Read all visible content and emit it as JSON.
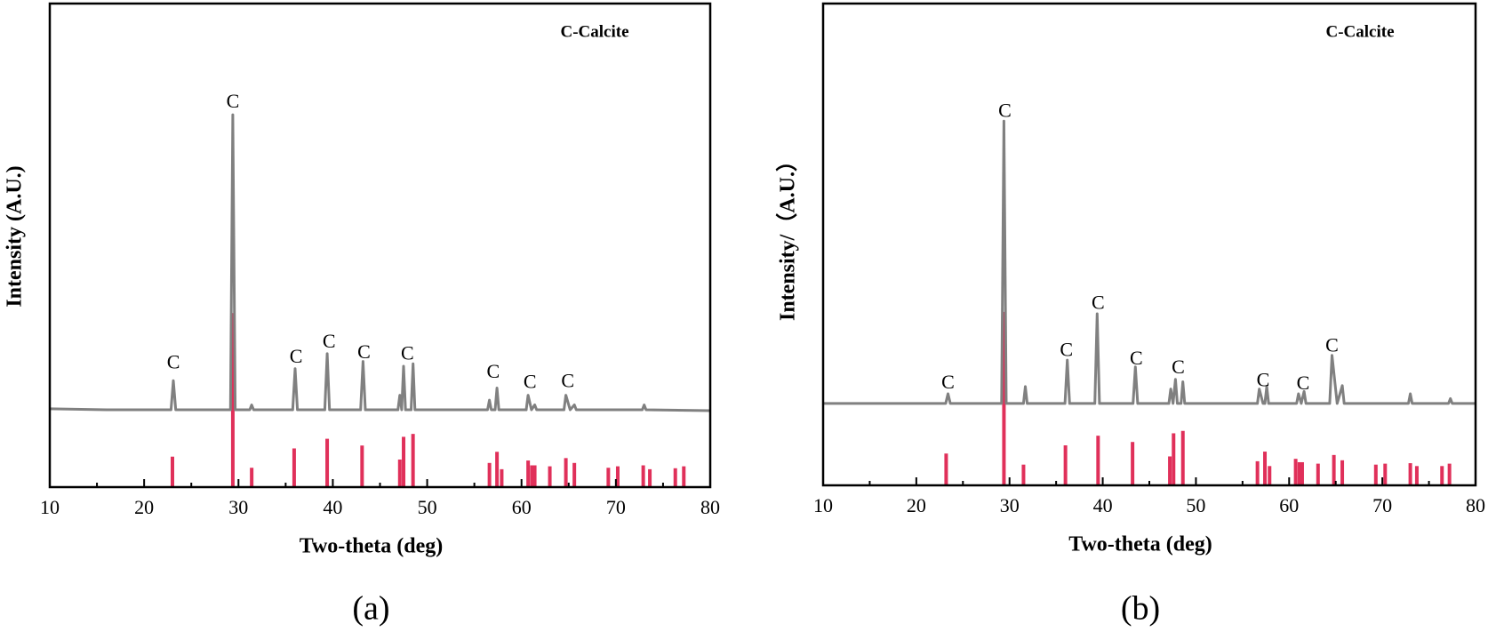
{
  "chart_data": [
    {
      "type": "line",
      "panel_label": "(a)",
      "xlabel": "Two-theta (deg)",
      "ylabel": "Intensity (A.U.)",
      "legend_text": "C-Calcite",
      "xlim": [
        10,
        80
      ],
      "ylim": [
        0,
        100
      ],
      "xticks": [
        10,
        20,
        30,
        40,
        50,
        60,
        70,
        80
      ],
      "xminorticks": [
        15,
        25,
        35,
        45,
        55,
        65,
        75
      ],
      "series": [
        {
          "color": "#808080",
          "x": [
            10,
            16,
            22.85,
            23.1,
            23.35,
            29.15,
            29.4,
            29.65,
            31.2,
            31.4,
            31.6,
            35.75,
            36.0,
            36.25,
            39.15,
            39.4,
            39.65,
            42.95,
            43.2,
            43.45,
            46.9,
            47.1,
            47.3,
            47.5,
            47.7,
            48.3,
            48.5,
            48.7,
            56.4,
            56.6,
            56.8,
            57.2,
            57.4,
            57.6,
            60.5,
            60.7,
            61.05,
            61.4,
            61.6,
            64.5,
            64.7,
            65.15,
            65.6,
            65.8,
            72.8,
            73,
            73.2,
            80
          ],
          "values": [
            16.2,
            16,
            16,
            22,
            16,
            16,
            77,
            16,
            16,
            17,
            16,
            16,
            24.5,
            16,
            16,
            27.6,
            16,
            16,
            26,
            16,
            16,
            19,
            16,
            25,
            16,
            16,
            25.5,
            16,
            16,
            18,
            16,
            16,
            20.5,
            16,
            16,
            19,
            16,
            17,
            16,
            16,
            19,
            16,
            17,
            16,
            16,
            17,
            16,
            15.8
          ]
        }
      ],
      "reference": {
        "color": "#e0305a",
        "x": [
          23.0,
          29.4,
          31.4,
          35.9,
          39.4,
          43.1,
          47.1,
          47.5,
          48.5,
          56.6,
          57.4,
          57.9,
          60.7,
          61.1,
          61.4,
          63.0,
          64.7,
          65.6,
          69.2,
          70.2,
          72.9,
          73.6,
          76.3,
          77.2
        ],
        "values": [
          6.3,
          36,
          4,
          8,
          10,
          8.6,
          5.7,
          10.4,
          11,
          5,
          7.3,
          3.7,
          5.5,
          4.5,
          4.5,
          4.3,
          6,
          5,
          4,
          4.3,
          4.5,
          3.7,
          3.9,
          4.3
        ]
      },
      "annotations": [
        {
          "text": "C",
          "x": 23.1,
          "y": 25.5
        },
        {
          "text": "C",
          "x": 29.4,
          "y": 79.4
        },
        {
          "text": "C",
          "x": 36.1,
          "y": 26.7
        },
        {
          "text": "C",
          "x": 39.6,
          "y": 29.8
        },
        {
          "text": "C",
          "x": 43.3,
          "y": 27.6
        },
        {
          "text": "C",
          "x": 47.9,
          "y": 27.3
        },
        {
          "text": "C",
          "x": 57.0,
          "y": 23.5
        },
        {
          "text": "C",
          "x": 60.9,
          "y": 21.4
        },
        {
          "text": "C",
          "x": 64.9,
          "y": 21.6
        }
      ]
    },
    {
      "type": "line",
      "panel_label": "(b)",
      "xlabel": "Two-theta (deg)",
      "ylabel": "Intensity/（A.U.）",
      "legend_text": "C-Calcite",
      "xlim": [
        10,
        80
      ],
      "ylim": [
        0,
        100
      ],
      "xticks": [
        10,
        20,
        30,
        40,
        50,
        60,
        70,
        80
      ],
      "xminorticks": [
        15,
        25,
        35,
        45,
        55,
        65,
        75
      ],
      "series": [
        {
          "color": "#808080",
          "x": [
            10,
            16,
            23.15,
            23.4,
            23.65,
            29.15,
            29.4,
            29.65,
            31.5,
            31.7,
            31.9,
            35.95,
            36.2,
            36.45,
            39.15,
            39.4,
            39.65,
            43.25,
            43.5,
            43.75,
            47.1,
            47.3,
            47.55,
            47.8,
            48.0,
            48.4,
            48.6,
            48.8,
            56.6,
            56.8,
            57.2,
            57.4,
            57.6,
            57.8,
            60.8,
            61.0,
            61.3,
            61.6,
            61.8,
            64.35,
            64.6,
            65.15,
            65.7,
            65.9,
            72.8,
            73,
            73.2,
            77.1,
            77.3,
            77.5,
            80
          ],
          "values": [
            17,
            17,
            17,
            19,
            17,
            17,
            75.6,
            17,
            17,
            20.5,
            17,
            17,
            26,
            17,
            17,
            35.6,
            17,
            17,
            24.6,
            17,
            17,
            20,
            17,
            22,
            17,
            17,
            21.5,
            17,
            17,
            20,
            17,
            17,
            20.5,
            17,
            17,
            19,
            17,
            19.5,
            17,
            17,
            27,
            17,
            20.7,
            17,
            17,
            19,
            17,
            17,
            18,
            17,
            17
          ]
        }
      ],
      "reference": {
        "color": "#e0305a",
        "x": [
          23.2,
          29.4,
          31.5,
          36.0,
          39.5,
          43.2,
          47.2,
          47.6,
          48.6,
          56.6,
          57.4,
          57.9,
          60.7,
          61.1,
          61.4,
          63.1,
          64.8,
          65.7,
          69.3,
          70.3,
          73.0,
          73.7,
          76.4,
          77.2
        ],
        "values": [
          6.6,
          36,
          4.3,
          8.3,
          10.3,
          9,
          6,
          10.8,
          11.3,
          5,
          7,
          4,
          5.5,
          4.8,
          4.8,
          4.5,
          6.3,
          5.2,
          4.3,
          4.5,
          4.6,
          4,
          4,
          4.5
        ]
      },
      "annotations": [
        {
          "text": "C",
          "x": 23.4,
          "y": 21
        },
        {
          "text": "C",
          "x": 29.5,
          "y": 77.4
        },
        {
          "text": "C",
          "x": 36.1,
          "y": 27.8
        },
        {
          "text": "C",
          "x": 39.5,
          "y": 37.6
        },
        {
          "text": "C",
          "x": 43.6,
          "y": 26
        },
        {
          "text": "C",
          "x": 48.1,
          "y": 24.2
        },
        {
          "text": "C",
          "x": 57.2,
          "y": 21.5
        },
        {
          "text": "C",
          "x": 61.5,
          "y": 20.9
        },
        {
          "text": "C",
          "x": 64.6,
          "y": 28.7
        }
      ]
    }
  ]
}
